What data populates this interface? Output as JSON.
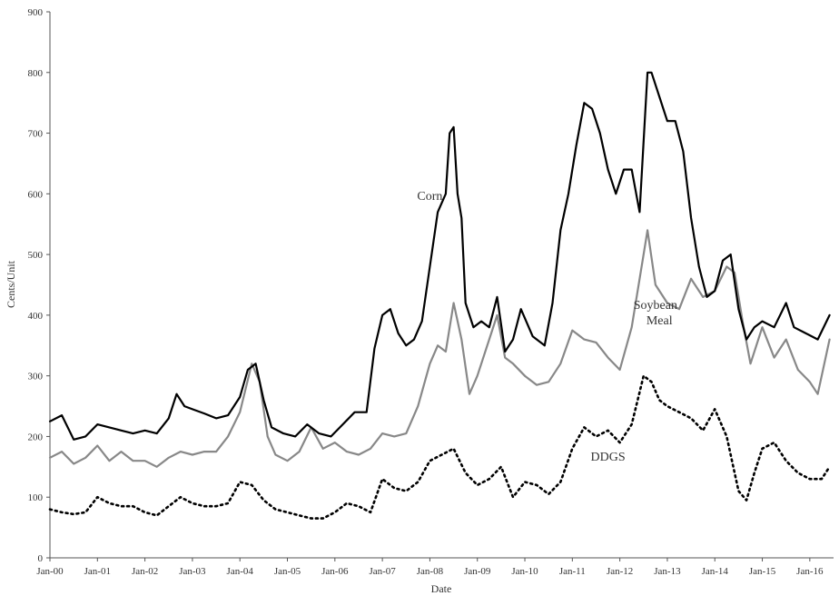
{
  "chart_data": {
    "type": "line",
    "title": "",
    "xlabel": "Date",
    "ylabel": "Cents/Unit",
    "ylim": [
      0,
      900
    ],
    "xlim": [
      "2000-01",
      "2016-07"
    ],
    "yticks": [
      0,
      100,
      200,
      300,
      400,
      500,
      600,
      700,
      800,
      900
    ],
    "xticks": [
      "Jan-00",
      "Jan-01",
      "Jan-02",
      "Jan-03",
      "Jan-04",
      "Jan-05",
      "Jan-06",
      "Jan-07",
      "Jan-08",
      "Jan-09",
      "Jan-10",
      "Jan-11",
      "Jan-12",
      "Jan-13",
      "Jan-14",
      "Jan-15",
      "Jan-16"
    ],
    "grid": false,
    "legend": "none",
    "series": [
      {
        "name": "Corn",
        "color": "#000000",
        "style": "solid",
        "points": [
          [
            "2000-01",
            225
          ],
          [
            "2000-04",
            235
          ],
          [
            "2000-07",
            195
          ],
          [
            "2000-10",
            200
          ],
          [
            "2001-01",
            220
          ],
          [
            "2001-04",
            215
          ],
          [
            "2001-07",
            210
          ],
          [
            "2001-10",
            205
          ],
          [
            "2002-01",
            210
          ],
          [
            "2002-04",
            205
          ],
          [
            "2002-07",
            230
          ],
          [
            "2002-09",
            270
          ],
          [
            "2002-11",
            250
          ],
          [
            "2003-01",
            245
          ],
          [
            "2003-04",
            238
          ],
          [
            "2003-07",
            230
          ],
          [
            "2003-10",
            235
          ],
          [
            "2004-01",
            265
          ],
          [
            "2004-03",
            310
          ],
          [
            "2004-05",
            320
          ],
          [
            "2004-07",
            260
          ],
          [
            "2004-09",
            215
          ],
          [
            "2004-12",
            205
          ],
          [
            "2005-03",
            200
          ],
          [
            "2005-06",
            220
          ],
          [
            "2005-09",
            205
          ],
          [
            "2005-12",
            200
          ],
          [
            "2006-03",
            220
          ],
          [
            "2006-06",
            240
          ],
          [
            "2006-09",
            240
          ],
          [
            "2006-11",
            345
          ],
          [
            "2007-01",
            400
          ],
          [
            "2007-03",
            410
          ],
          [
            "2007-05",
            370
          ],
          [
            "2007-07",
            350
          ],
          [
            "2007-09",
            360
          ],
          [
            "2007-11",
            390
          ],
          [
            "2008-01",
            480
          ],
          [
            "2008-03",
            570
          ],
          [
            "2008-05",
            600
          ],
          [
            "2008-06",
            700
          ],
          [
            "2008-07",
            710
          ],
          [
            "2008-08",
            600
          ],
          [
            "2008-09",
            560
          ],
          [
            "2008-10",
            420
          ],
          [
            "2008-12",
            380
          ],
          [
            "2009-02",
            390
          ],
          [
            "2009-04",
            380
          ],
          [
            "2009-06",
            430
          ],
          [
            "2009-08",
            340
          ],
          [
            "2009-10",
            360
          ],
          [
            "2009-12",
            410
          ],
          [
            "2010-03",
            365
          ],
          [
            "2010-06",
            350
          ],
          [
            "2010-08",
            420
          ],
          [
            "2010-10",
            540
          ],
          [
            "2010-12",
            600
          ],
          [
            "2011-02",
            680
          ],
          [
            "2011-04",
            750
          ],
          [
            "2011-06",
            740
          ],
          [
            "2011-08",
            700
          ],
          [
            "2011-10",
            640
          ],
          [
            "2011-12",
            600
          ],
          [
            "2012-02",
            640
          ],
          [
            "2012-04",
            640
          ],
          [
            "2012-06",
            570
          ],
          [
            "2012-08",
            800
          ],
          [
            "2012-09",
            800
          ],
          [
            "2012-11",
            760
          ],
          [
            "2013-01",
            720
          ],
          [
            "2013-03",
            720
          ],
          [
            "2013-05",
            670
          ],
          [
            "2013-07",
            560
          ],
          [
            "2013-09",
            480
          ],
          [
            "2013-11",
            430
          ],
          [
            "2014-01",
            440
          ],
          [
            "2014-03",
            490
          ],
          [
            "2014-05",
            500
          ],
          [
            "2014-07",
            410
          ],
          [
            "2014-09",
            360
          ],
          [
            "2014-11",
            380
          ],
          [
            "2015-01",
            390
          ],
          [
            "2015-04",
            380
          ],
          [
            "2015-07",
            420
          ],
          [
            "2015-09",
            380
          ],
          [
            "2015-12",
            370
          ],
          [
            "2016-03",
            360
          ],
          [
            "2016-06",
            400
          ]
        ]
      },
      {
        "name": "Soybean Meal",
        "color": "#888888",
        "style": "solid",
        "points": [
          [
            "2000-01",
            165
          ],
          [
            "2000-04",
            175
          ],
          [
            "2000-07",
            155
          ],
          [
            "2000-10",
            165
          ],
          [
            "2001-01",
            185
          ],
          [
            "2001-04",
            160
          ],
          [
            "2001-07",
            175
          ],
          [
            "2001-10",
            160
          ],
          [
            "2002-01",
            160
          ],
          [
            "2002-04",
            150
          ],
          [
            "2002-07",
            165
          ],
          [
            "2002-10",
            175
          ],
          [
            "2003-01",
            170
          ],
          [
            "2003-04",
            175
          ],
          [
            "2003-07",
            175
          ],
          [
            "2003-10",
            200
          ],
          [
            "2004-01",
            240
          ],
          [
            "2004-04",
            320
          ],
          [
            "2004-06",
            290
          ],
          [
            "2004-08",
            200
          ],
          [
            "2004-10",
            170
          ],
          [
            "2005-01",
            160
          ],
          [
            "2005-04",
            175
          ],
          [
            "2005-07",
            215
          ],
          [
            "2005-10",
            180
          ],
          [
            "2006-01",
            190
          ],
          [
            "2006-04",
            175
          ],
          [
            "2006-07",
            170
          ],
          [
            "2006-10",
            180
          ],
          [
            "2007-01",
            205
          ],
          [
            "2007-04",
            200
          ],
          [
            "2007-07",
            205
          ],
          [
            "2007-10",
            250
          ],
          [
            "2008-01",
            320
          ],
          [
            "2008-03",
            350
          ],
          [
            "2008-05",
            340
          ],
          [
            "2008-07",
            420
          ],
          [
            "2008-09",
            360
          ],
          [
            "2008-11",
            270
          ],
          [
            "2009-01",
            300
          ],
          [
            "2009-04",
            360
          ],
          [
            "2009-06",
            400
          ],
          [
            "2009-08",
            330
          ],
          [
            "2009-10",
            320
          ],
          [
            "2010-01",
            300
          ],
          [
            "2010-04",
            285
          ],
          [
            "2010-07",
            290
          ],
          [
            "2010-10",
            320
          ],
          [
            "2011-01",
            375
          ],
          [
            "2011-04",
            360
          ],
          [
            "2011-07",
            355
          ],
          [
            "2011-10",
            330
          ],
          [
            "2012-01",
            310
          ],
          [
            "2012-04",
            380
          ],
          [
            "2012-07",
            500
          ],
          [
            "2012-08",
            540
          ],
          [
            "2012-10",
            450
          ],
          [
            "2013-01",
            420
          ],
          [
            "2013-04",
            410
          ],
          [
            "2013-07",
            460
          ],
          [
            "2013-10",
            430
          ],
          [
            "2014-01",
            440
          ],
          [
            "2014-04",
            480
          ],
          [
            "2014-06",
            470
          ],
          [
            "2014-08",
            390
          ],
          [
            "2014-10",
            320
          ],
          [
            "2015-01",
            380
          ],
          [
            "2015-04",
            330
          ],
          [
            "2015-07",
            360
          ],
          [
            "2015-10",
            310
          ],
          [
            "2016-01",
            290
          ],
          [
            "2016-03",
            270
          ],
          [
            "2016-06",
            360
          ]
        ]
      },
      {
        "name": "DDGS",
        "color": "#000000",
        "style": "dotted",
        "points": [
          [
            "2000-01",
            80
          ],
          [
            "2000-04",
            75
          ],
          [
            "2000-07",
            72
          ],
          [
            "2000-10",
            75
          ],
          [
            "2001-01",
            100
          ],
          [
            "2001-04",
            90
          ],
          [
            "2001-07",
            85
          ],
          [
            "2001-10",
            85
          ],
          [
            "2002-01",
            75
          ],
          [
            "2002-04",
            70
          ],
          [
            "2002-07",
            85
          ],
          [
            "2002-10",
            100
          ],
          [
            "2003-01",
            90
          ],
          [
            "2003-04",
            85
          ],
          [
            "2003-07",
            85
          ],
          [
            "2003-10",
            90
          ],
          [
            "2004-01",
            125
          ],
          [
            "2004-04",
            120
          ],
          [
            "2004-07",
            95
          ],
          [
            "2004-10",
            80
          ],
          [
            "2005-01",
            75
          ],
          [
            "2005-04",
            70
          ],
          [
            "2005-07",
            65
          ],
          [
            "2005-10",
            65
          ],
          [
            "2006-01",
            75
          ],
          [
            "2006-04",
            90
          ],
          [
            "2006-07",
            85
          ],
          [
            "2006-10",
            75
          ],
          [
            "2007-01",
            130
          ],
          [
            "2007-04",
            115
          ],
          [
            "2007-07",
            110
          ],
          [
            "2007-10",
            125
          ],
          [
            "2008-01",
            160
          ],
          [
            "2008-04",
            170
          ],
          [
            "2008-07",
            180
          ],
          [
            "2008-10",
            140
          ],
          [
            "2009-01",
            120
          ],
          [
            "2009-04",
            130
          ],
          [
            "2009-07",
            150
          ],
          [
            "2009-10",
            100
          ],
          [
            "2010-01",
            125
          ],
          [
            "2010-04",
            120
          ],
          [
            "2010-07",
            105
          ],
          [
            "2010-10",
            125
          ],
          [
            "2011-01",
            180
          ],
          [
            "2011-04",
            215
          ],
          [
            "2011-07",
            200
          ],
          [
            "2011-10",
            210
          ],
          [
            "2012-01",
            190
          ],
          [
            "2012-04",
            220
          ],
          [
            "2012-07",
            300
          ],
          [
            "2012-09",
            290
          ],
          [
            "2012-11",
            260
          ],
          [
            "2013-01",
            250
          ],
          [
            "2013-04",
            240
          ],
          [
            "2013-07",
            230
          ],
          [
            "2013-10",
            210
          ],
          [
            "2014-01",
            245
          ],
          [
            "2014-04",
            200
          ],
          [
            "2014-07",
            110
          ],
          [
            "2014-09",
            95
          ],
          [
            "2014-11",
            140
          ],
          [
            "2015-01",
            180
          ],
          [
            "2015-04",
            190
          ],
          [
            "2015-07",
            160
          ],
          [
            "2015-10",
            140
          ],
          [
            "2016-01",
            130
          ],
          [
            "2016-04",
            130
          ],
          [
            "2016-06",
            150
          ]
        ]
      }
    ],
    "annotations": [
      {
        "text": "Corn",
        "series": "Corn",
        "x": "2008-01",
        "y": 590
      },
      {
        "text": "Soybean",
        "series": "Soybean Meal",
        "x": "2012-10",
        "y": 410
      },
      {
        "text": "Meal",
        "series": "Soybean Meal",
        "x": "2012-11",
        "y": 385
      },
      {
        "text": "DDGS",
        "series": "DDGS",
        "x": "2011-10",
        "y": 160
      }
    ]
  }
}
